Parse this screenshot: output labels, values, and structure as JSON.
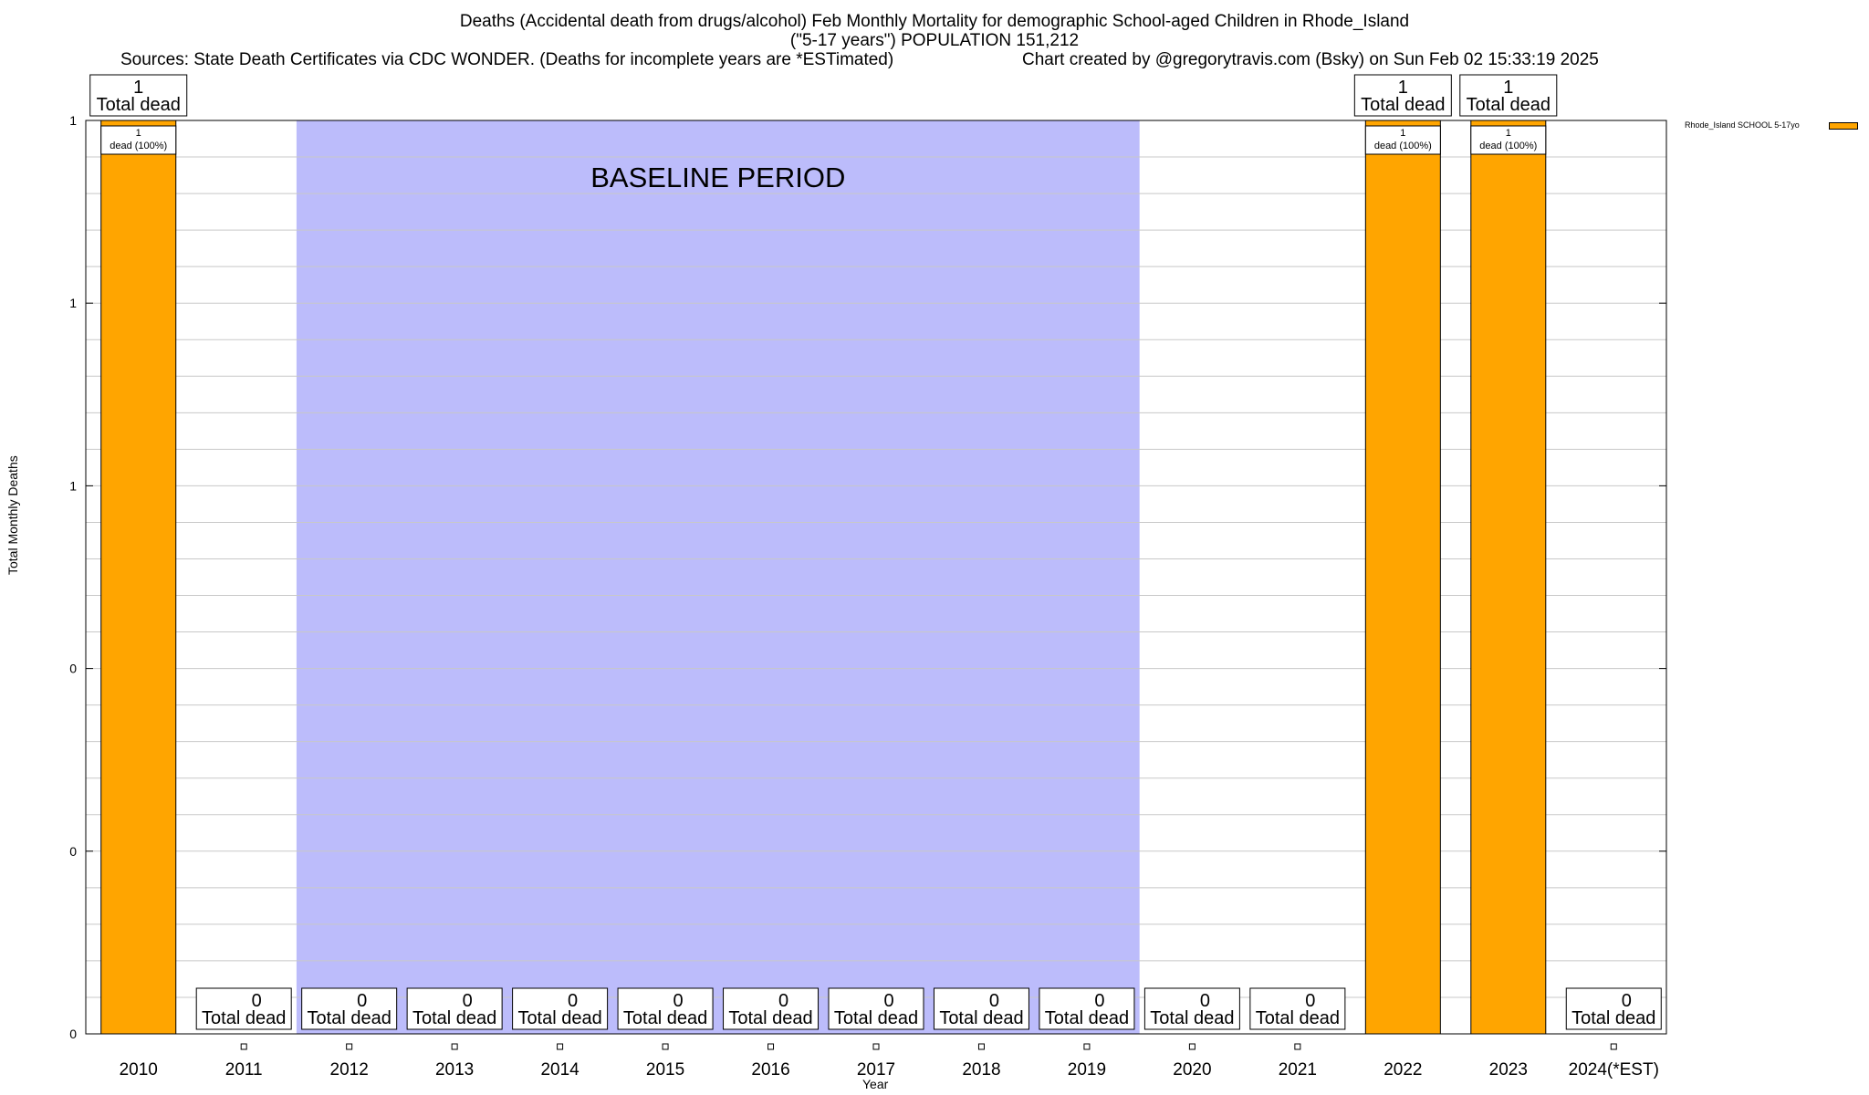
{
  "titles": {
    "line1": "Deaths (Accidental death from drugs/alcohol) Feb Monthly Mortality for demographic School-aged Children in Rhode_Island",
    "line2": "(\"5-17 years\") POPULATION 151,212",
    "sources": "Sources: State Death Certificates via CDC WONDER. (Deaths for incomplete years are *ESTimated)",
    "credit": "Chart created by @gregorytravis.com (Bsky) on Sun Feb 02 15:33:19 2025"
  },
  "chart_data": {
    "type": "bar",
    "xlabel": "Year",
    "ylabel": "Total Monthly Deaths",
    "categories": [
      "2010",
      "2011",
      "2012",
      "2013",
      "2014",
      "2015",
      "2016",
      "2017",
      "2018",
      "2019",
      "2020",
      "2021",
      "2022",
      "2023",
      "2024(*EST)"
    ],
    "series": [
      {
        "name": "Rhode_Island SCHOOL 5-17yo",
        "values": [
          1,
          0,
          0,
          0,
          0,
          0,
          0,
          0,
          0,
          0,
          0,
          0,
          1,
          1,
          0
        ]
      }
    ],
    "ylim": [
      0,
      1
    ],
    "yticks": [
      0,
      0.2,
      0.4,
      0.6,
      0.8,
      1
    ],
    "ytick_labels": [
      "0",
      "0",
      "0",
      "1",
      "1",
      "1"
    ],
    "total_label_suffix": "Total dead",
    "segment_labels": [
      "1\ndead (100%)",
      "",
      "",
      "",
      "",
      "",
      "",
      "",
      "",
      "",
      "",
      "",
      "1\ndead (100%)",
      "1\ndead (100%)",
      ""
    ],
    "baseline_period": {
      "from": "2012",
      "to": "2019",
      "label": "BASELINE PERIOD",
      "color": "#bcbcfb"
    },
    "bar_color": "#ffa500",
    "grid": true,
    "legend_position": "top-right"
  }
}
